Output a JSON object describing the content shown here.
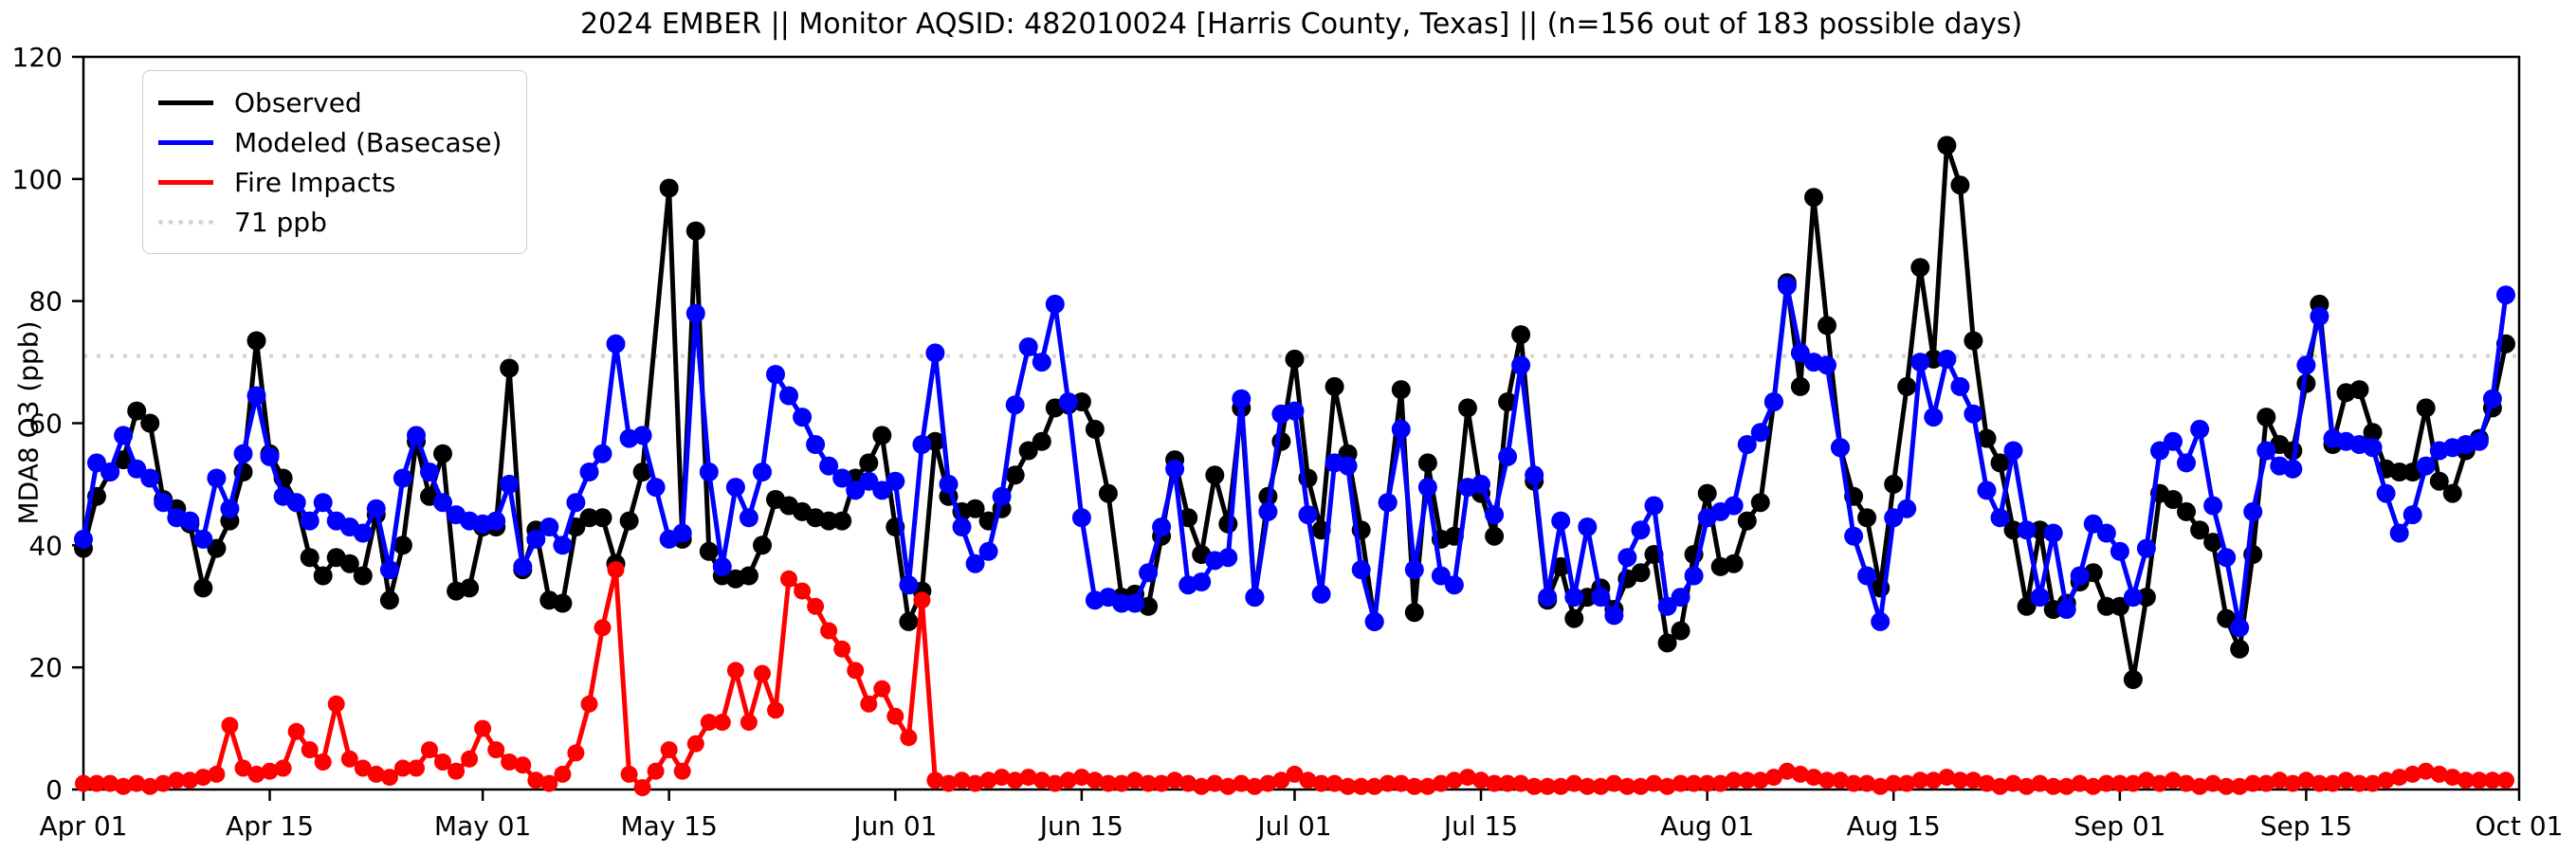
{
  "title": "2024 EMBER || Monitor AQSID: 482010024 [Harris County, Texas] || (n=156 out of 183 possible days)",
  "axes": {
    "y_label": "MDA8 O3 (ppb)",
    "y_ticks": [
      0,
      20,
      40,
      60,
      80,
      100,
      120
    ],
    "y_max": 120,
    "x_tick_days": [
      0,
      14,
      30,
      44,
      61,
      75,
      91,
      105,
      122,
      136,
      153,
      167,
      183
    ],
    "x_tick_labels": [
      "Apr 01",
      "Apr 15",
      "May 01",
      "May 15",
      "Jun 01",
      "Jun 15",
      "Jul 01",
      "Jul 15",
      "Aug 01",
      "Aug 15",
      "Sep 01",
      "Sep 15",
      "Oct 01"
    ],
    "total_days": 183
  },
  "reference_line": {
    "value": 71,
    "label": "71 ppb",
    "color": "#d3d3d3"
  },
  "legend_items": [
    {
      "label": "Observed",
      "color": "#000000",
      "style": "solid"
    },
    {
      "label": "Modeled (Basecase)",
      "color": "#0000ff",
      "style": "solid"
    },
    {
      "label": "Fire Impacts",
      "color": "#ff0000",
      "style": "solid"
    },
    {
      "label": "71 ppb",
      "color": "#d3d3d3",
      "style": "dotted"
    }
  ],
  "chart_data": {
    "type": "line",
    "x_start": "2024-04-01",
    "x_end": "2024-10-01",
    "x_unit": "day",
    "title": "2024 EMBER || Monitor AQSID: 482010024 [Harris County, Texas] || (n=156 out of 183 possible days)",
    "ylabel": "MDA8 O3 (ppb)",
    "ylim": [
      0,
      120
    ],
    "grid": false,
    "legend_position": "upper-left",
    "series": [
      {
        "name": "Observed",
        "color": "#000000",
        "marker_radius": 10,
        "values": [
          39.5,
          48,
          52,
          54,
          62,
          60,
          47.5,
          46,
          43.5,
          33,
          39.5,
          44,
          52,
          73.5,
          55,
          51,
          47,
          38,
          35,
          38,
          37,
          35,
          45,
          31,
          40,
          57,
          48,
          55,
          32.5,
          33,
          43,
          43,
          69,
          36,
          42.5,
          31,
          30.5,
          43,
          44.5,
          44.5,
          37,
          44,
          52,
          null,
          98.5,
          41,
          91.5,
          39,
          35,
          34.5,
          35,
          40,
          47.5,
          46.5,
          45.5,
          44.5,
          44,
          44,
          51,
          53.5,
          58,
          43,
          27.5,
          32.5,
          57,
          48,
          45.5,
          46,
          44,
          46,
          51.5,
          55.5,
          57,
          62.5,
          63,
          63.5,
          59,
          48.5,
          31.5,
          32,
          30,
          41.5,
          54,
          44.5,
          38.5,
          51.5,
          43.5,
          62.5,
          31.5,
          48,
          57,
          70.5,
          51,
          42.5,
          66,
          55,
          42.5,
          27.5,
          47,
          65.5,
          29,
          53.5,
          41,
          41.5,
          62.5,
          48.5,
          41.5,
          63.5,
          74.5,
          50.5,
          31,
          36.5,
          28,
          31.5,
          33,
          29.5,
          34.5,
          35.5,
          38.5,
          24,
          26,
          38.5,
          48.5,
          36.5,
          37,
          44,
          47,
          63.5,
          83,
          66,
          97,
          76,
          56,
          48,
          44.5,
          33,
          50,
          66,
          85.5,
          70.5,
          105.5,
          99,
          73.5,
          57.5,
          53.5,
          42.5,
          30,
          42.5,
          29.5,
          30.5,
          34,
          35.5,
          30,
          30,
          18,
          31.5,
          48.5,
          47.5,
          45.5,
          42.5,
          40.5,
          28,
          23,
          38.5,
          61,
          56.5,
          55.5,
          66.5,
          79.5,
          56.5,
          65,
          65.5,
          58.5,
          52.5,
          52,
          52,
          62.5,
          50.5,
          48.5,
          55.5,
          57.5,
          62.5,
          73
        ]
      },
      {
        "name": "Modeled (Basecase)",
        "color": "#0000ff",
        "marker_radius": 10,
        "values": [
          41,
          53.5,
          52,
          58,
          52.5,
          51,
          47,
          44.5,
          44,
          41,
          51,
          46,
          55,
          64.5,
          54.5,
          48,
          47,
          44,
          47,
          44,
          43,
          42,
          46,
          36,
          51,
          58,
          52,
          47,
          45,
          44,
          43.5,
          44,
          50,
          36.5,
          41,
          43,
          40,
          47,
          52,
          55,
          73,
          57.5,
          58,
          49.5,
          41,
          42,
          78,
          52,
          36.5,
          49.5,
          44.5,
          52,
          68,
          64.5,
          61,
          56.5,
          53,
          51,
          49,
          50.5,
          49,
          50.5,
          33.5,
          56.5,
          71.5,
          50,
          43,
          37,
          39,
          48,
          63,
          72.5,
          70,
          79.5,
          63.5,
          44.5,
          31,
          31.5,
          30.5,
          30.5,
          35.5,
          43,
          52.5,
          33.5,
          34,
          37.5,
          38,
          64,
          31.5,
          45.5,
          61.5,
          62,
          45,
          32,
          53.5,
          53,
          36,
          27.5,
          47,
          59,
          36,
          49.5,
          35,
          33.5,
          49.5,
          50,
          45,
          54.5,
          69.5,
          51.5,
          31.5,
          44,
          31.5,
          43,
          31.5,
          28.5,
          38,
          42.5,
          46.5,
          30,
          31.5,
          35,
          44.5,
          45.5,
          46.5,
          56.5,
          58.5,
          63.5,
          82.5,
          71.5,
          70,
          69.5,
          56,
          41.5,
          35,
          27.5,
          44.5,
          46,
          70,
          61,
          70.5,
          66,
          61.5,
          49,
          44.5,
          55.5,
          42.5,
          31.5,
          42,
          29.5,
          35,
          43.5,
          42,
          39,
          31.5,
          39.5,
          55.5,
          57,
          53.5,
          59,
          46.5,
          38,
          26.5,
          45.5,
          55.5,
          53,
          52.5,
          69.5,
          77.5,
          57.5,
          57,
          56.5,
          56,
          48.5,
          42,
          45,
          53,
          55.5,
          56,
          56.5,
          57,
          64,
          81
        ]
      },
      {
        "name": "Fire Impacts",
        "color": "#ff0000",
        "marker_radius": 9,
        "values": [
          1,
          1,
          1,
          0.5,
          1,
          0.5,
          1,
          1.5,
          1.5,
          2,
          2.5,
          10.5,
          3.5,
          2.5,
          3,
          3.5,
          9.5,
          6.5,
          4.5,
          14,
          5,
          3.5,
          2.5,
          2,
          3.5,
          3.5,
          6.5,
          4.5,
          3,
          5,
          10,
          6.5,
          4.5,
          4,
          1.5,
          1,
          2.5,
          6,
          14,
          26.5,
          36,
          2.5,
          0.3,
          3,
          6.5,
          3,
          7.5,
          11,
          11,
          19.5,
          11,
          19,
          13,
          34.5,
          32.5,
          30,
          26,
          23,
          19.5,
          14,
          16.5,
          12,
          8.5,
          31,
          1.5,
          1,
          1.5,
          1,
          1.5,
          2,
          1.5,
          2,
          1.5,
          1,
          1.5,
          2,
          1.5,
          1,
          1,
          1.5,
          1,
          1,
          1.5,
          1,
          0.5,
          1,
          0.5,
          1,
          0.5,
          1,
          1.5,
          2.5,
          1.5,
          1,
          1,
          0.5,
          0.5,
          0.5,
          1,
          1,
          0.5,
          0.5,
          1,
          1.5,
          2,
          1.5,
          1,
          1,
          1,
          0.5,
          0.5,
          0.5,
          1,
          0.5,
          0.5,
          1,
          0.5,
          0.5,
          1,
          0.5,
          1,
          1,
          1,
          1,
          1.5,
          1.5,
          1.5,
          2,
          3,
          2.5,
          2,
          1.5,
          1.5,
          1,
          1,
          0.5,
          1,
          1,
          1.5,
          1.5,
          2,
          1.5,
          1.5,
          1,
          0.5,
          1,
          0.5,
          1,
          0.5,
          0.5,
          1,
          0.5,
          1,
          1,
          1,
          1.5,
          1,
          1.5,
          1,
          0.5,
          1,
          0.5,
          0.5,
          1,
          1,
          1.5,
          1,
          1.5,
          1,
          1,
          1.5,
          1,
          1,
          1.5,
          2,
          2.5,
          3,
          2.5,
          2,
          1.5,
          1.5,
          1.5,
          1.5
        ]
      }
    ]
  }
}
